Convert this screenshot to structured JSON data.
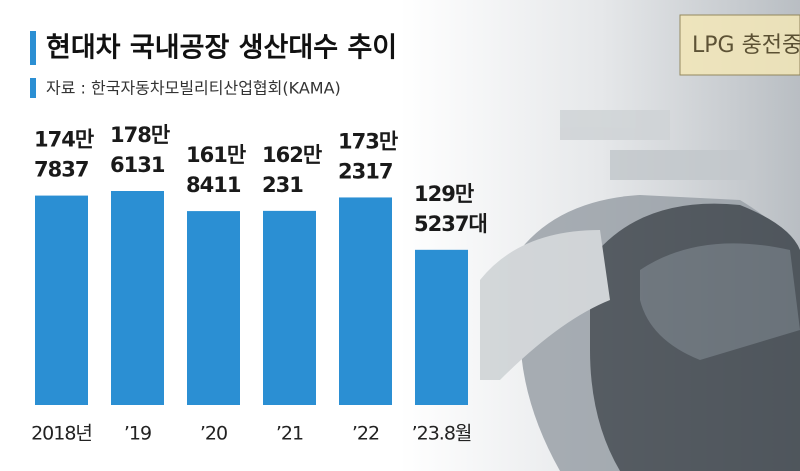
{
  "chart_data": {
    "type": "bar",
    "title": "현대차 국내공장 생산대수 추이",
    "subtitle": "자료 : 한국자동차모빌리티산업협회(KAMA)",
    "categories": [
      "2018년",
      "’19",
      "’20",
      "’21",
      "’22",
      "’23.8월"
    ],
    "values": [
      1747837,
      1786131,
      1618411,
      1620231,
      1732317,
      1295237
    ],
    "value_labels": [
      "174만\n7837",
      "178만\n6131",
      "161만\n8411",
      "162만\n231",
      "173만\n2317",
      "129만\n5237대"
    ],
    "color": "#2b8fd3"
  }
}
